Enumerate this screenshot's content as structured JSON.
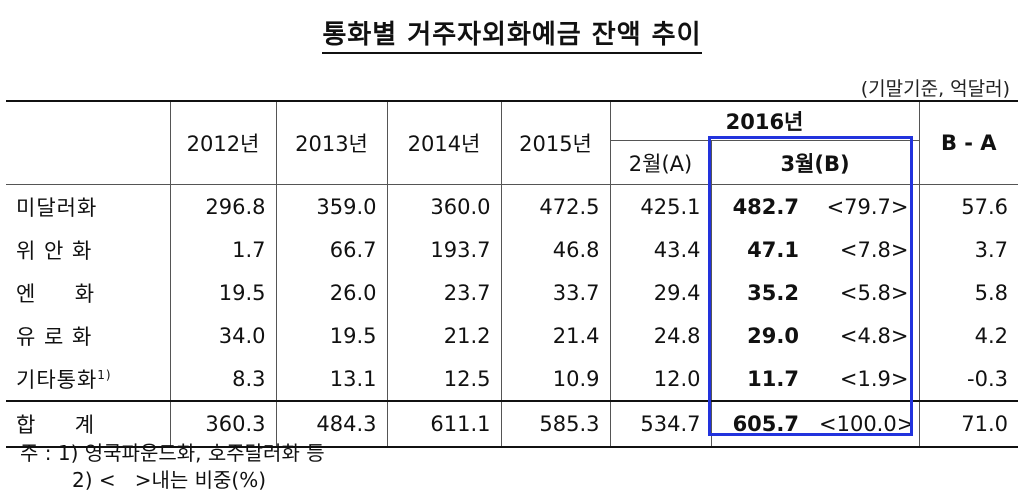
{
  "title": "통화별 거주자외화예금 잔액 추이",
  "unit": "(기말기준, 억달러)",
  "header": {
    "years": [
      "2012년",
      "2013년",
      "2014년",
      "2015년"
    ],
    "group_2016": "2016년",
    "feb": "2월(A)",
    "mar": "3월(B)",
    "diff": "B - A"
  },
  "rows": [
    {
      "label": "미달러화",
      "sup": "",
      "values": [
        "296.8",
        "359.0",
        "360.0",
        "472.5",
        "425.1"
      ],
      "mar": "482.7",
      "share": "<79.7>",
      "diff": "57.6"
    },
    {
      "label": "위 안 화",
      "sup": "",
      "values": [
        "1.7",
        "66.7",
        "193.7",
        "46.8",
        "43.4"
      ],
      "mar": "47.1",
      "share": "<7.8>",
      "diff": "3.7"
    },
    {
      "label": "엔     화",
      "sup": "",
      "values": [
        "19.5",
        "26.0",
        "23.7",
        "33.7",
        "29.4"
      ],
      "mar": "35.2",
      "share": "<5.8>",
      "diff": "5.8"
    },
    {
      "label": "유 로 화",
      "sup": "",
      "values": [
        "34.0",
        "19.5",
        "21.2",
        "21.4",
        "24.8"
      ],
      "mar": "29.0",
      "share": "<4.8>",
      "diff": "4.2"
    },
    {
      "label": "기타통화",
      "sup": "1)",
      "values": [
        "8.3",
        "13.1",
        "12.5",
        "10.9",
        "12.0"
      ],
      "mar": "11.7",
      "share": "<1.9>",
      "diff": "-0.3"
    }
  ],
  "total": {
    "label": "합     계",
    "values": [
      "360.3",
      "484.3",
      "611.1",
      "585.3",
      "534.7"
    ],
    "mar": "605.7",
    "share": "<100.0>",
    "diff": "71.0"
  },
  "notes": {
    "note1": "주 : 1) 영국파운드화, 호주달러화 등",
    "note2": "2) <   >내는 비중(%)"
  },
  "colors": {
    "highlight_border": "#2233dd"
  }
}
